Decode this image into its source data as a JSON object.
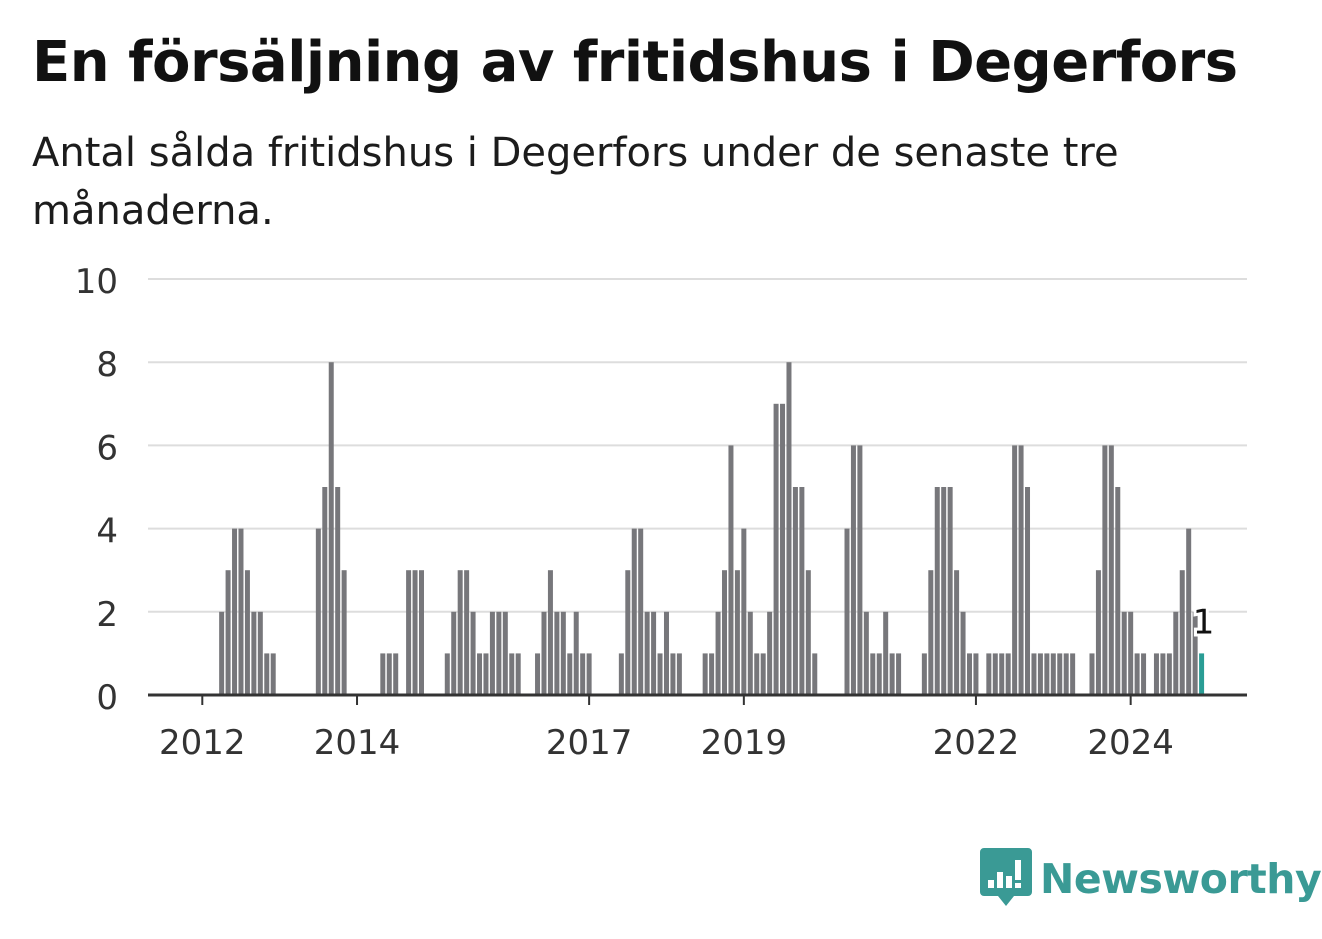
{
  "chart_data": {
    "type": "bar",
    "title": "En försäljning av fritidshus i Degerfors",
    "subtitle": "Antal sålda fritidshus i Degerfors under de senaste tre månaderna.",
    "xlabel": "",
    "ylabel": "",
    "ylim": [
      0,
      10
    ],
    "yticks": [
      0,
      2,
      4,
      6,
      8,
      10
    ],
    "xticks": [
      {
        "label": "2012",
        "index": 8
      },
      {
        "label": "2014",
        "index": 32
      },
      {
        "label": "2017",
        "index": 68
      },
      {
        "label": "2019",
        "index": 92
      },
      {
        "label": "2022",
        "index": 128
      },
      {
        "label": "2024",
        "index": 152
      }
    ],
    "values": [
      0,
      0,
      0,
      0,
      0,
      0,
      0,
      0,
      0,
      0,
      0,
      2,
      3,
      4,
      4,
      3,
      2,
      2,
      1,
      1,
      0,
      0,
      0,
      0,
      0,
      0,
      4,
      5,
      8,
      5,
      3,
      0,
      0,
      0,
      0,
      0,
      1,
      1,
      1,
      0,
      3,
      3,
      3,
      0,
      0,
      0,
      1,
      2,
      3,
      3,
      2,
      1,
      1,
      2,
      2,
      2,
      1,
      1,
      0,
      0,
      1,
      2,
      3,
      2,
      2,
      1,
      2,
      1,
      1,
      0,
      0,
      0,
      0,
      1,
      3,
      4,
      4,
      2,
      2,
      1,
      2,
      1,
      1,
      0,
      0,
      0,
      1,
      1,
      2,
      3,
      6,
      3,
      4,
      2,
      1,
      1,
      2,
      7,
      7,
      8,
      5,
      5,
      3,
      1,
      0,
      0,
      0,
      0,
      4,
      6,
      6,
      2,
      1,
      1,
      2,
      1,
      1,
      0,
      0,
      0,
      1,
      3,
      5,
      5,
      5,
      3,
      2,
      1,
      1,
      0,
      1,
      1,
      1,
      1,
      6,
      6,
      5,
      1,
      1,
      1,
      1,
      1,
      1,
      1,
      0,
      0,
      1,
      3,
      6,
      6,
      5,
      2,
      2,
      1,
      1,
      0,
      1,
      1,
      1,
      2,
      3,
      4,
      2,
      1
    ],
    "highlight": {
      "index": 163,
      "label": "1"
    },
    "colors": {
      "bar": "#77777b",
      "highlight": "#2a9d95",
      "grid": "#dddddd",
      "axis": "#333333",
      "brand": "#3a9a95"
    }
  },
  "brand": {
    "name": "Newsworthy"
  }
}
